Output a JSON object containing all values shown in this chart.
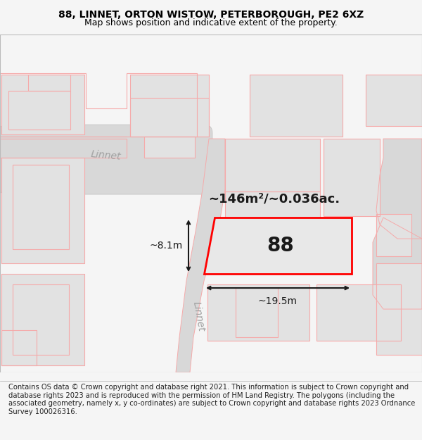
{
  "title_line1": "88, LINNET, ORTON WISTOW, PETERBOROUGH, PE2 6XZ",
  "title_line2": "Map shows position and indicative extent of the property.",
  "footer_text": "Contains OS data © Crown copyright and database right 2021. This information is subject to Crown copyright and database rights 2023 and is reproduced with the permission of HM Land Registry. The polygons (including the associated geometry, namely x, y co-ordinates) are subject to Crown copyright and database rights 2023 Ordnance Survey 100026316.",
  "bg_color": "#f5f5f5",
  "map_bg": "#ffffff",
  "area_label": "~146m²/~0.036ac.",
  "number_label": "88",
  "width_label": "~19.5m",
  "height_label": "~8.1m",
  "road_label1": "Linnet",
  "road_label2": "Linnet",
  "building_fill": "#e2e2e2",
  "highlight_fill": "#e8e8e8",
  "highlight_stroke": "#ff0000",
  "pink_line_color": "#f5aaaa",
  "road_fill": "#d8d8d8",
  "dim_line_color": "#1a1a1a",
  "title_fontsize": 10,
  "subtitle_fontsize": 9,
  "footer_fontsize": 7.2
}
